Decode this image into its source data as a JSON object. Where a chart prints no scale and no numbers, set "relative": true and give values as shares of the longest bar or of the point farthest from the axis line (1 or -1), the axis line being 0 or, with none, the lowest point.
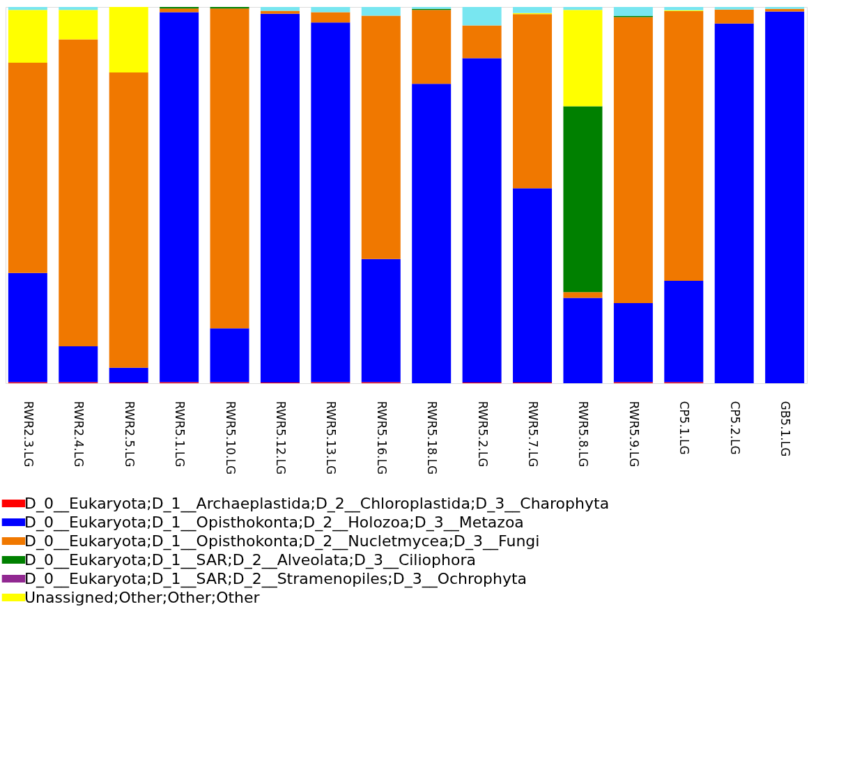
{
  "chart_data": {
    "type": "bar",
    "stacked": true,
    "relative": true,
    "legend": "bottom",
    "categories": [
      "RWR2.3.LG",
      "RWR2.4.LG",
      "RWR2.5.LG",
      "RWR5.1.LG",
      "RWR5.10.LG",
      "RWR5.12.LG",
      "RWR5.13.LG",
      "RWR5.16.LG",
      "RWR5.18.LG",
      "RWR5.2.LG",
      "RWR5.7.LG",
      "RWR5.8.LG",
      "RWR5.9.LG",
      "CP5.1.LG",
      "CP5.2.LG",
      "GB5.1.LG"
    ],
    "series": [
      {
        "name": "D_0__Eukaryota;D_1__Archaeplastida;D_2__Chloroplastida;D_3__Charophyta",
        "color": "#ff0000",
        "values": [
          0.003,
          0.003,
          0.002,
          0.003,
          0.003,
          0.002,
          0.003,
          0.003,
          0,
          0.002,
          0.002,
          0,
          0.003,
          0.003,
          0,
          0
        ]
      },
      {
        "name": "D_0__Eukaryota;D_1__Opisthokonta;D_2__Holozoa;D_3__Metazoa",
        "color": "#0000ff",
        "values": [
          0.29,
          0.095,
          0.039,
          0.983,
          0.143,
          0.98,
          0.956,
          0.327,
          0.796,
          0.862,
          0.516,
          0.227,
          0.21,
          0.269,
          0.956,
          0.988
        ]
      },
      {
        "name": "D_0__Eukaryota;D_1__Opisthokonta;D_2__Nucletmycea;D_3__Fungi",
        "color": "#f07800",
        "values": [
          0.559,
          0.816,
          0.785,
          0.01,
          0.85,
          0.008,
          0.027,
          0.647,
          0.196,
          0.087,
          0.463,
          0.015,
          0.76,
          0.717,
          0.037,
          0.007
        ]
      },
      {
        "name": "D_0__Eukaryota;D_1__SAR;D_2__Alveolata;D_3__Ciliophora",
        "color": "#008000",
        "values": [
          0,
          0,
          0,
          0.004,
          0.004,
          0,
          0,
          0,
          0.003,
          0,
          0,
          0.494,
          0.003,
          0,
          0,
          0
        ]
      },
      {
        "name": "D_0__Eukaryota;D_1__SAR;D_2__Stramenopiles;D_3__Ochrophyta",
        "color": "#912891",
        "values": [
          0,
          0,
          0,
          0,
          0,
          0,
          0,
          0,
          0,
          0,
          0,
          0,
          0,
          0,
          0,
          0
        ]
      },
      {
        "name": "Unassigned;Other;Other;Other",
        "color": "#ffff00",
        "values": [
          0.14,
          0.078,
          0.174,
          0,
          0,
          0,
          0,
          0,
          0,
          0,
          0.003,
          0.256,
          0,
          0.002,
          0,
          0
        ]
      },
      {
        "color": "#78e6f0",
        "values": [
          0.008,
          0.008,
          0,
          0,
          0,
          0.01,
          0.014,
          0.023,
          0.005,
          0.049,
          0.016,
          0.008,
          0.024,
          0.009,
          0.007,
          0.005
        ]
      }
    ]
  }
}
